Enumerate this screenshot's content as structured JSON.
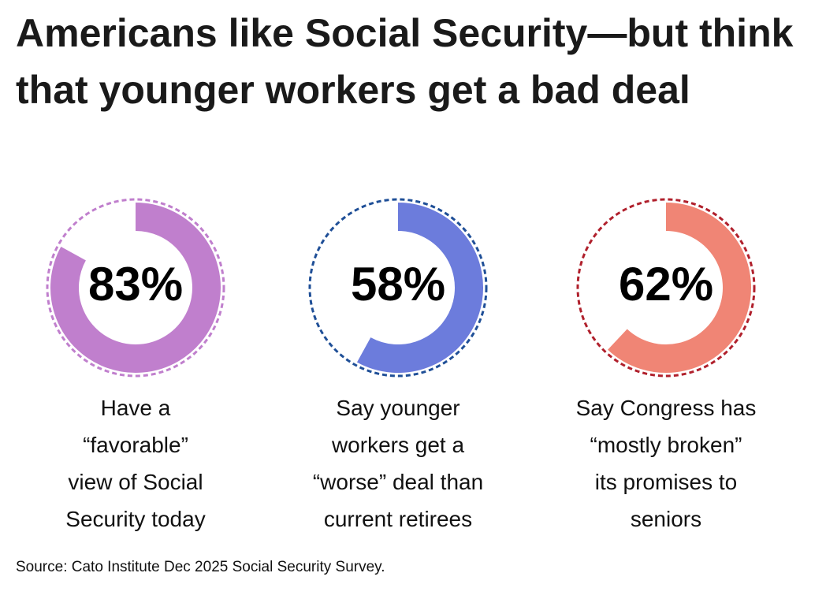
{
  "chart_data": {
    "type": "donut",
    "title": "Americans like Social Security—but think that younger workers get a bad deal",
    "categories": [
      "Have a\n“favorable”\nview of Social\nSecurity today",
      "Say younger\nworkers get a\n“worse” deal than\ncurrent retirees",
      "Say Congress has\n“mostly broken”\nits promises to\nseniors"
    ],
    "values": [
      83,
      58,
      62
    ],
    "value_labels": [
      "83%",
      "58%",
      "62%"
    ],
    "colors": [
      "#c07fcd",
      "#6c7cdc",
      "#f08575"
    ],
    "ring_colors": [
      "#c07fcd",
      "#1f4f97",
      "#b0202c"
    ],
    "source": "Source: Cato Institute Dec 2025 Social Security Survey."
  }
}
